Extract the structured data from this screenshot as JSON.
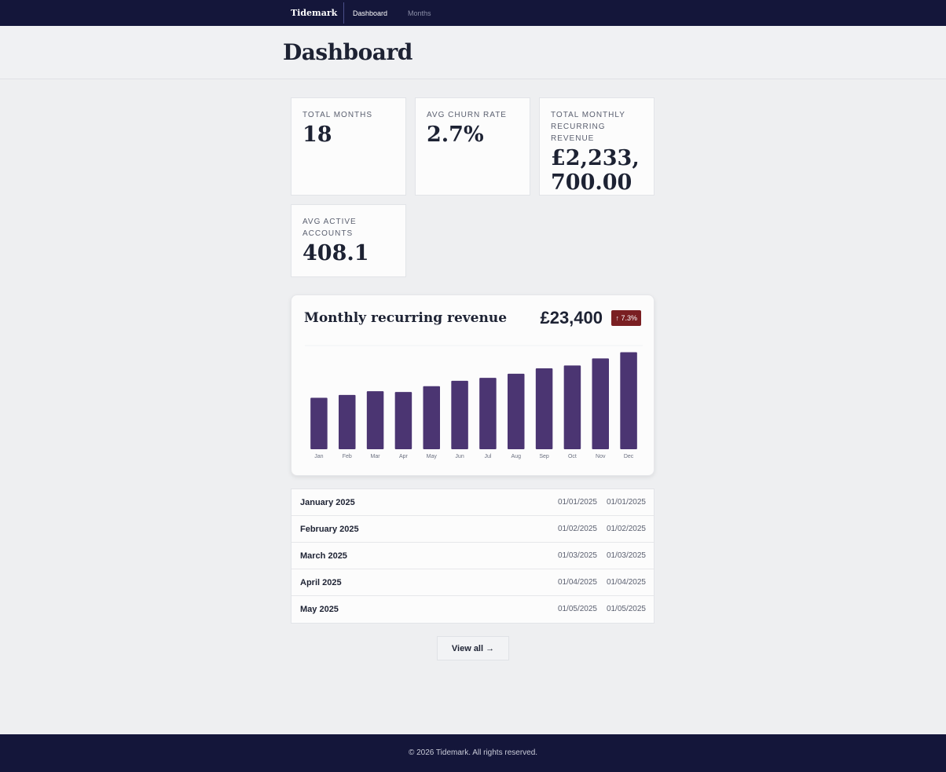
{
  "nav": {
    "brand": "Tidemark",
    "links": [
      "Dashboard",
      "Months"
    ]
  },
  "header": {
    "title": "Dashboard"
  },
  "stats": [
    {
      "label": "TOTAL MONTHS",
      "value": "18"
    },
    {
      "label": "AVG CHURN RATE",
      "value": "2.7%"
    },
    {
      "label": "TOTAL MONTHLY RECURRING REVENUE",
      "value": "£2,233,700.00"
    },
    {
      "label": "AVG ACTIVE ACCOUNTS",
      "value": "408.1"
    }
  ],
  "chart_data": {
    "type": "bar",
    "title": "Monthly recurring revenue",
    "total": "£23,400",
    "change": "↑ 7.3%",
    "categories": [
      "Jan",
      "Feb",
      "Mar",
      "Apr",
      "May",
      "Jun",
      "Jul",
      "Aug",
      "Sep",
      "Oct",
      "Nov",
      "Dec"
    ],
    "values": [
      12400,
      13100,
      14000,
      13800,
      15200,
      16500,
      17200,
      18200,
      19500,
      20200,
      21900,
      23400
    ],
    "color": "#4b3572",
    "ylim": [
      0,
      25000
    ]
  },
  "months": {
    "rows": [
      {
        "name": "January 2025",
        "start": "01/01/2025",
        "end": "01/01/2025"
      },
      {
        "name": "February 2025",
        "start": "01/02/2025",
        "end": "01/02/2025"
      },
      {
        "name": "March 2025",
        "start": "01/03/2025",
        "end": "01/03/2025"
      },
      {
        "name": "April 2025",
        "start": "01/04/2025",
        "end": "01/04/2025"
      },
      {
        "name": "May 2025",
        "start": "01/05/2025",
        "end": "01/05/2025"
      }
    ]
  },
  "button": "View all →",
  "footer": "© 2026 Tidemark. All rights reserved."
}
